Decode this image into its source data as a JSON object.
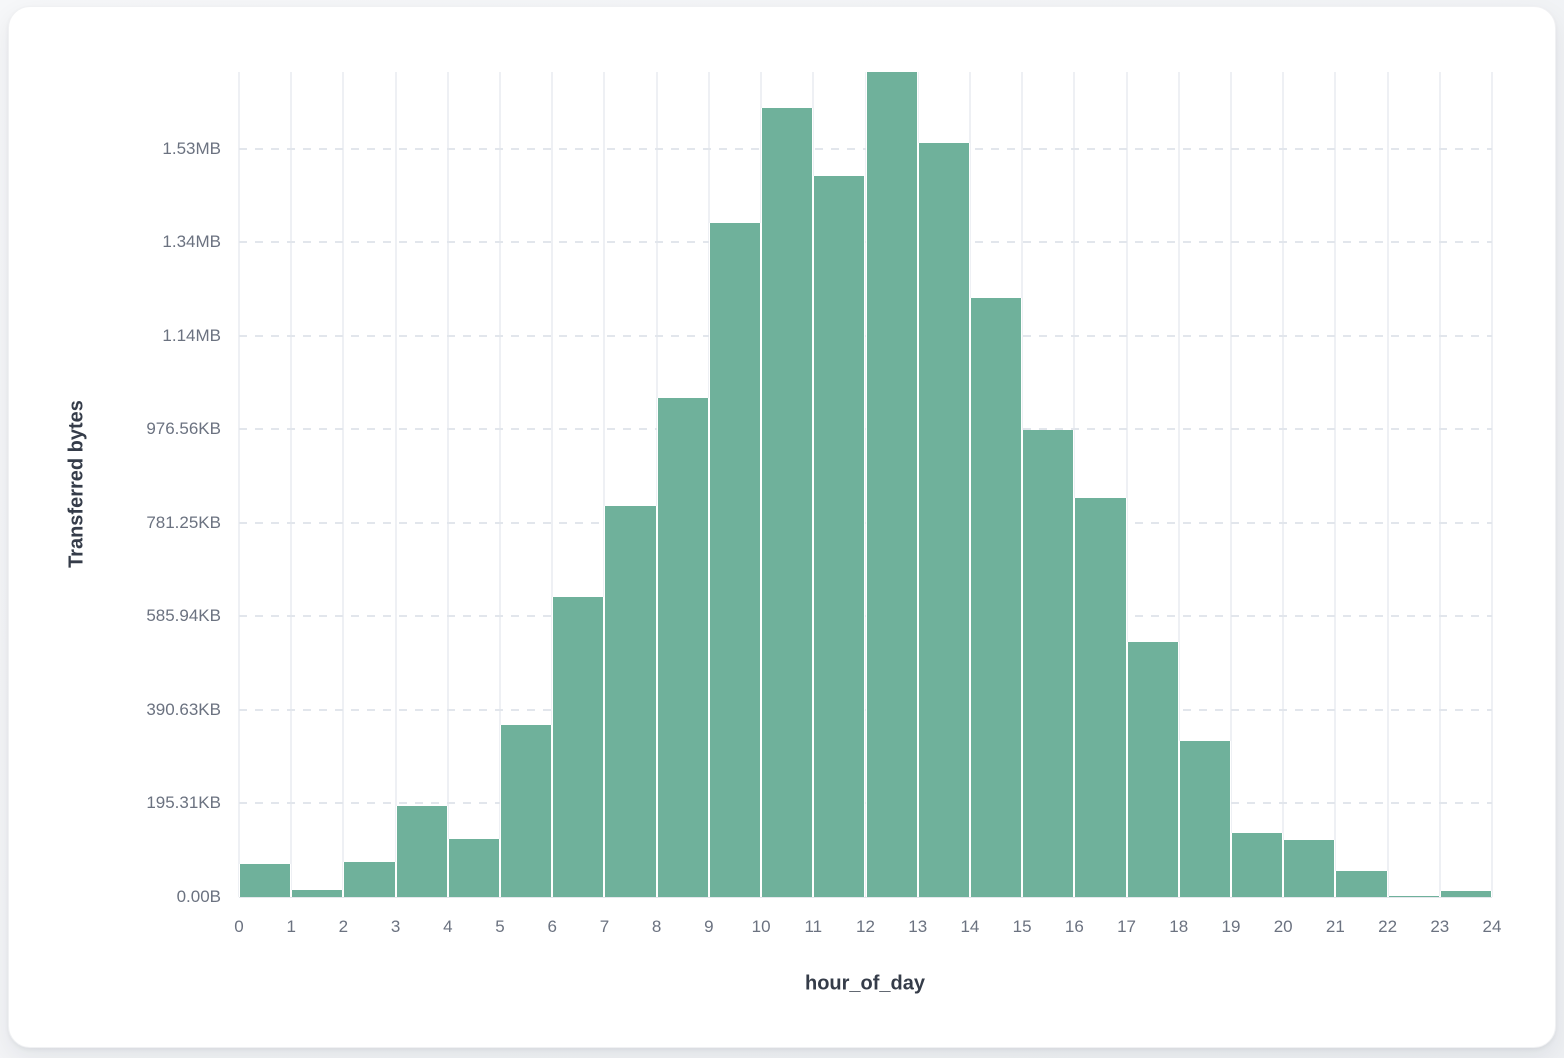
{
  "chart_data": {
    "type": "bar",
    "title": "",
    "xlabel": "hour_of_day",
    "ylabel": "Transferred bytes",
    "categories_hours": [
      0,
      1,
      2,
      3,
      4,
      5,
      6,
      7,
      8,
      9,
      10,
      11,
      12,
      13,
      14,
      15,
      16,
      17,
      18,
      19,
      20,
      21,
      22,
      23
    ],
    "values_bytes": [
      70600,
      14500,
      74900,
      194800,
      124200,
      368200,
      642200,
      837100,
      1066100,
      1440800,
      1687000,
      1541400,
      1764000,
      1612000,
      1280200,
      997600,
      854200,
      545900,
      334000,
      137000,
      122000,
      55700,
      3000,
      12800
    ],
    "x_tick_labels": [
      "0",
      "1",
      "2",
      "3",
      "4",
      "5",
      "6",
      "7",
      "8",
      "9",
      "10",
      "11",
      "12",
      "13",
      "14",
      "15",
      "16",
      "17",
      "18",
      "19",
      "20",
      "21",
      "22",
      "23",
      "24"
    ],
    "y_tick_labels": [
      "0.00B",
      "195.31KB",
      "390.63KB",
      "585.94KB",
      "781.25KB",
      "976.56KB",
      "1.14MB",
      "1.34MB",
      "1.53MB"
    ],
    "y_tick_bytes": [
      0,
      200000,
      400000,
      600000,
      800000,
      1000000,
      1200000,
      1400000,
      1600000
    ],
    "ylim_bytes": [
      0,
      1764000
    ],
    "grid": true,
    "legend_position": "none",
    "colors": {
      "bar": "#6fb19b",
      "bar_border": "#ffffff",
      "vertical_gridline": "#eef0f4",
      "dashed_gridline": "#e2e6ec",
      "tick_label": "#6b7280",
      "axis_title": "#353c49",
      "card_background": "#ffffff",
      "page_background": "#f1f3f6"
    }
  }
}
